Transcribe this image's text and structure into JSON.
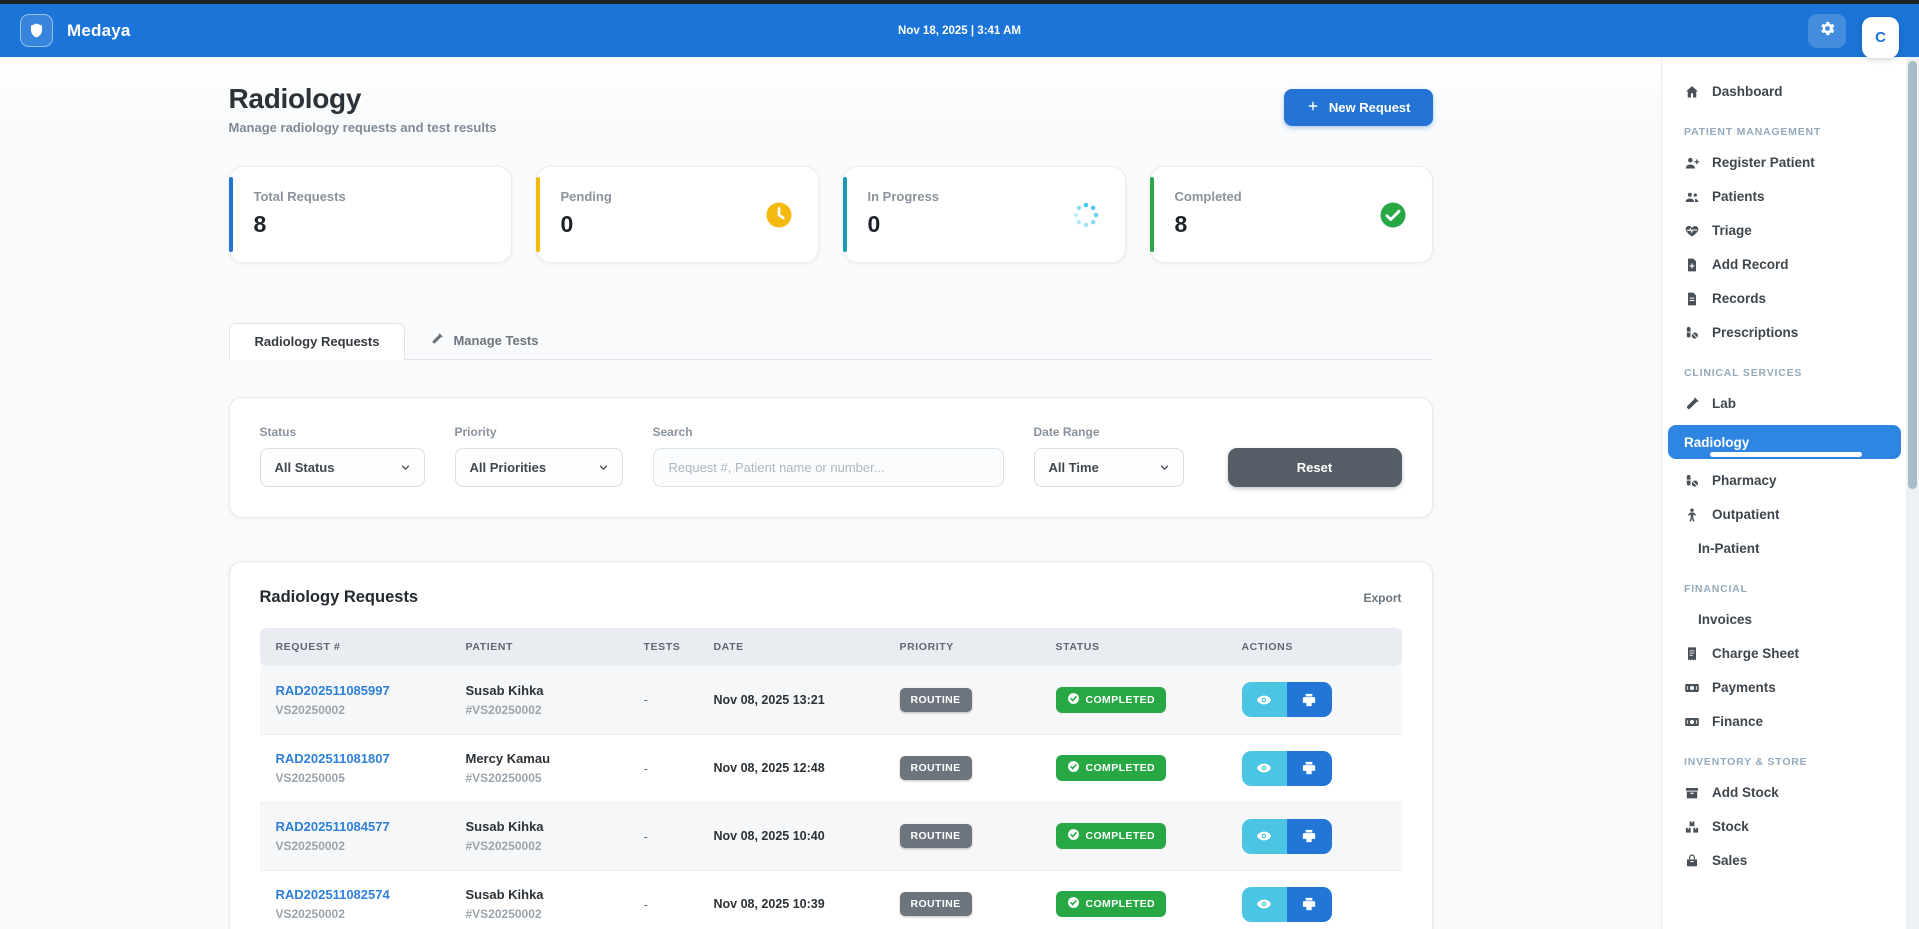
{
  "topbar": {
    "brand": "Medaya",
    "datetime": "Nov 18, 2025 | 3:41 AM",
    "avatar_initial": "C"
  },
  "page": {
    "title": "Radiology",
    "subtitle": "Manage radiology requests and test results",
    "new_request_label": "New Request"
  },
  "stats": [
    {
      "label": "Total Requests",
      "value": "8",
      "accent": "#1f74d6",
      "icon": null,
      "icon_color": null
    },
    {
      "label": "Pending",
      "value": "0",
      "accent": "#f5b80c",
      "icon": "clock-icon",
      "icon_color": "#f5b80c"
    },
    {
      "label": "In Progress",
      "value": "0",
      "accent": "#1899b4",
      "icon": "spinner-icon",
      "icon_color": "#3ec6ea"
    },
    {
      "label": "Completed",
      "value": "8",
      "accent": "#28a745",
      "icon": "check-circle-icon",
      "icon_color": "#28a745"
    }
  ],
  "tabs": [
    {
      "label": "Radiology Requests",
      "icon": null,
      "active": true
    },
    {
      "label": "Manage Tests",
      "icon": "test-tube-icon",
      "active": false
    }
  ],
  "filters": {
    "status": {
      "label": "Status",
      "value": "All Status"
    },
    "priority": {
      "label": "Priority",
      "value": "All Priorities"
    },
    "search": {
      "label": "Search",
      "placeholder": "Request #, Patient name or number..."
    },
    "date_range": {
      "label": "Date Range",
      "value": "All Time"
    },
    "reset_label": "Reset"
  },
  "table": {
    "title": "Radiology Requests",
    "export_label": "Export",
    "columns": [
      "REQUEST #",
      "PATIENT",
      "TESTS",
      "DATE",
      "PRIORITY",
      "STATUS",
      "ACTIONS"
    ],
    "rows": [
      {
        "request_no": "RAD202511085997",
        "visit_no": "VS20250002",
        "patient_name": "Susab Kihka",
        "patient_no": "#VS20250002",
        "tests": "-",
        "date": "Nov 08, 2025 13:21",
        "priority": "ROUTINE",
        "status": "COMPLETED"
      },
      {
        "request_no": "RAD202511081807",
        "visit_no": "VS20250005",
        "patient_name": "Mercy Kamau",
        "patient_no": "#VS20250005",
        "tests": "-",
        "date": "Nov 08, 2025 12:48",
        "priority": "ROUTINE",
        "status": "COMPLETED"
      },
      {
        "request_no": "RAD202511084577",
        "visit_no": "VS20250002",
        "patient_name": "Susab Kihka",
        "patient_no": "#VS20250002",
        "tests": "-",
        "date": "Nov 08, 2025 10:40",
        "priority": "ROUTINE",
        "status": "COMPLETED"
      },
      {
        "request_no": "RAD202511082574",
        "visit_no": "VS20250002",
        "patient_name": "Susab Kihka",
        "patient_no": "#VS20250002",
        "tests": "-",
        "date": "Nov 08, 2025 10:39",
        "priority": "ROUTINE",
        "status": "COMPLETED"
      }
    ]
  },
  "sidebar": {
    "sections": [
      {
        "header": null,
        "items": [
          {
            "label": "Dashboard",
            "icon": "home-icon",
            "active": false
          }
        ]
      },
      {
        "header": "PATIENT MANAGEMENT",
        "items": [
          {
            "label": "Register Patient",
            "icon": "user-plus-icon",
            "active": false
          },
          {
            "label": "Patients",
            "icon": "users-icon",
            "active": false
          },
          {
            "label": "Triage",
            "icon": "heart-pulse-icon",
            "active": false
          },
          {
            "label": "Add Record",
            "icon": "file-plus-icon",
            "active": false
          },
          {
            "label": "Records",
            "icon": "file-icon",
            "active": false
          },
          {
            "label": "Prescriptions",
            "icon": "pills-icon",
            "active": false
          }
        ]
      },
      {
        "header": "CLINICAL SERVICES",
        "items": [
          {
            "label": "Lab",
            "icon": "test-tube-icon",
            "active": false
          },
          {
            "label": "Radiology",
            "icon": null,
            "active": true
          },
          {
            "label": "Pharmacy",
            "icon": "pills-icon",
            "active": false
          },
          {
            "label": "Outpatient",
            "icon": "person-icon",
            "active": false
          },
          {
            "label": "In-Patient",
            "icon": null,
            "active": false
          }
        ]
      },
      {
        "header": "FINANCIAL",
        "items": [
          {
            "label": "Invoices",
            "icon": null,
            "active": false
          },
          {
            "label": "Charge Sheet",
            "icon": "receipt-icon",
            "active": false
          },
          {
            "label": "Payments",
            "icon": "money-icon",
            "active": false
          },
          {
            "label": "Finance",
            "icon": "money-icon",
            "active": false
          }
        ]
      },
      {
        "header": "INVENTORY & STORE",
        "items": [
          {
            "label": "Add Stock",
            "icon": "box-icon",
            "active": false
          },
          {
            "label": "Stock",
            "icon": "boxes-icon",
            "active": false
          },
          {
            "label": "Sales",
            "icon": "sales-icon",
            "active": false
          }
        ]
      }
    ]
  },
  "colors": {
    "topbar_blue": "#1b74d7",
    "active_item_blue": "#2e86e2",
    "link_blue": "#2f80d8",
    "priority_badge_gray": "#6c757d",
    "status_badge_green": "#28a745",
    "action_view_cyan": "#4cc4e4",
    "action_print_blue": "#2176d6"
  }
}
